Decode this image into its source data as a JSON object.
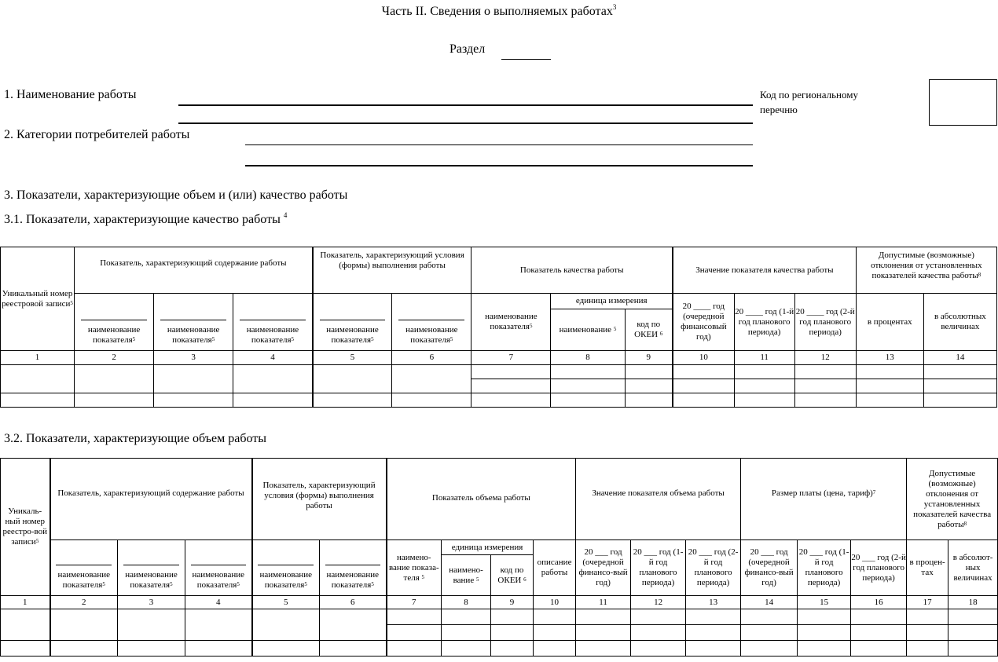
{
  "header": {
    "title": "Часть II. Сведения о выполняемых работах",
    "title_sup": "3",
    "razdel_label": "Раздел"
  },
  "fields": {
    "item1": "1. Наименование работы",
    "item2": "2. Категории потребителей работы",
    "kod_label_1": "Код по региональному",
    "kod_label_2": "перечню"
  },
  "sections": {
    "s3": "3. Показатели, характеризующие объем и (или) качество работы",
    "s31": "3.1. Показатели, характеризующие качество работы",
    "s31_sup": "4",
    "s32": "3.2. Показатели, характеризующие объем работы"
  },
  "table1": {
    "unique": "Уникальный номер реестровой записи",
    "content": "Показатель, характеризующий содержание работы",
    "conditions": "Показатель, характеризующий условия (формы) выполнения работы",
    "quality": "Показатель качества работы",
    "value": "Значение показателя качества работы",
    "deviation": "Допустимые (возможные) отклонения от установленных показателей качества работы",
    "ind_name": "наименование показателя",
    "unit": "единица измерения",
    "unit_name": "наименование",
    "okei": "код по ОКЕИ",
    "y1": "20 ____ год (очередной финансовый год)",
    "y2": "20 ____ год (1-й год планового периода)",
    "y3": "20 ____ год (2-й год планового периода)",
    "percent": "в процентах",
    "absolute": "в абсолютных величинах",
    "numbers": [
      "1",
      "2",
      "3",
      "4",
      "5",
      "6",
      "7",
      "8",
      "9",
      "10",
      "11",
      "12",
      "13",
      "14"
    ]
  },
  "table2": {
    "unique": "Уникаль-ный номер реестро-вой записи",
    "content": "Показатель, характеризующий содержание работы",
    "conditions": "Показатель, характеризующий условия (формы) выполнения работы",
    "volume": "Показатель объема работы",
    "value": "Значение показателя объема работы",
    "fee": "Размер платы (цена, тариф)",
    "deviation": "Допустимые (возможные) отклонения от установленных показателей качества работы",
    "ind_name": "наименование показателя",
    "vol_name": "наимено-вание показа-теля",
    "unit": "единица измерения",
    "unit_name": "наимено-вание",
    "okei": "код по ОКЕИ",
    "descr": "описание работы",
    "y1": "20 ___ год (очередной финансо-вый год)",
    "y2": "20 ___ год (1-й год планового периода)",
    "y3": "20 ___ год (2-й год планового периода)",
    "percent": "в процен-тах",
    "absolute": "в абсолют-ных величинах",
    "numbers": [
      "1",
      "2",
      "3",
      "4",
      "5",
      "6",
      "7",
      "8",
      "9",
      "10",
      "11",
      "12",
      "13",
      "14",
      "15",
      "16",
      "17",
      "18"
    ]
  }
}
